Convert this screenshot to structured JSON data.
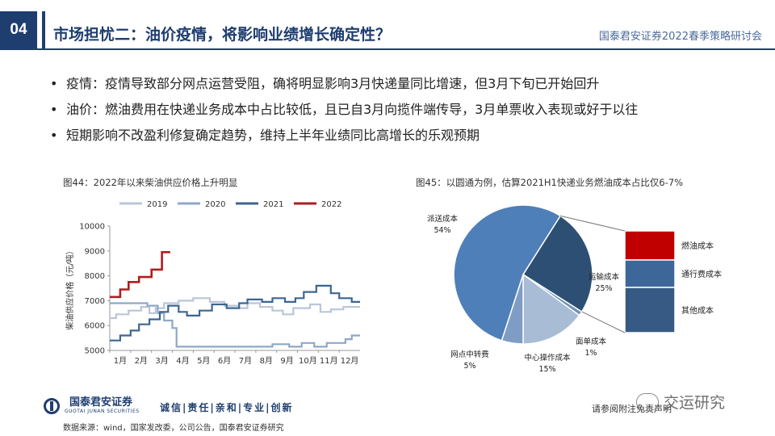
{
  "header": {
    "section": "04",
    "title": "市场担忧二：油价疫情，将影响业绩增长确定性？",
    "conference": "国泰君安证券2022春季策略研讨会"
  },
  "bullets": [
    "疫情：疫情导致部分网点运营受阻，确将明显影响3月快递量同比增速，但3月下旬已开始回升",
    "油价：燃油费用在快递业务成本中占比较低，且已自3月向揽件端传导，3月单票收入表现或好于以往",
    "短期影响不改盈利修复确定趋势，维持上半年业绩同比高增长的乐观预期"
  ],
  "chart_data": [
    {
      "type": "line",
      "title": "图44：2022年以来柴油供应价格上升明显",
      "ylabel": "柴油供应价格（元/吨）",
      "xlabel": "",
      "ylim": [
        5000,
        10000
      ],
      "yticks": [
        5000,
        6000,
        7000,
        8000,
        9000,
        10000
      ],
      "x_domain": [
        0,
        12
      ],
      "xticks": [
        "1月",
        "2月",
        "3月",
        "4月",
        "5月",
        "6月",
        "7月",
        "8月",
        "9月",
        "10月",
        "11月",
        "12月"
      ],
      "grid": false,
      "legend": "top",
      "series": [
        {
          "name": "2019",
          "color": "#b8c6d9",
          "points": [
            [
              0,
              6300
            ],
            [
              0.3,
              6300
            ],
            [
              0.3,
              6450
            ],
            [
              0.9,
              6450
            ],
            [
              0.9,
              6600
            ],
            [
              1.5,
              6600
            ],
            [
              1.5,
              6750
            ],
            [
              1.9,
              6750
            ],
            [
              1.9,
              6500
            ],
            [
              2.2,
              6500
            ],
            [
              2.2,
              6700
            ],
            [
              2.6,
              6700
            ],
            [
              2.6,
              6900
            ],
            [
              3.3,
              6900
            ],
            [
              3.3,
              7000
            ],
            [
              4.0,
              7000
            ],
            [
              4.0,
              7100
            ],
            [
              4.8,
              7100
            ],
            [
              4.8,
              6950
            ],
            [
              5.5,
              6950
            ],
            [
              5.5,
              6800
            ],
            [
              6.2,
              6800
            ],
            [
              6.2,
              6700
            ],
            [
              6.6,
              6700
            ],
            [
              6.6,
              6900
            ],
            [
              7.2,
              6900
            ],
            [
              7.2,
              6750
            ],
            [
              7.8,
              6750
            ],
            [
              7.8,
              6600
            ],
            [
              8.3,
              6600
            ],
            [
              8.3,
              6450
            ],
            [
              8.8,
              6450
            ],
            [
              8.8,
              6700
            ],
            [
              9.6,
              6700
            ],
            [
              9.6,
              6850
            ],
            [
              10.1,
              6850
            ],
            [
              10.1,
              6550
            ],
            [
              10.6,
              6550
            ],
            [
              10.6,
              6650
            ],
            [
              11.2,
              6650
            ],
            [
              11.2,
              6750
            ],
            [
              12,
              6750
            ]
          ]
        },
        {
          "name": "2020",
          "color": "#8ea8c8",
          "points": [
            [
              0,
              6900
            ],
            [
              1.8,
              6900
            ],
            [
              1.8,
              6800
            ],
            [
              2.3,
              6800
            ],
            [
              2.3,
              6500
            ],
            [
              2.6,
              6500
            ],
            [
              2.6,
              6200
            ],
            [
              3.0,
              6200
            ],
            [
              3.0,
              5900
            ],
            [
              3.2,
              5900
            ],
            [
              3.2,
              5150
            ],
            [
              7.8,
              5150
            ],
            [
              7.8,
              5250
            ],
            [
              8.6,
              5250
            ],
            [
              8.6,
              5150
            ],
            [
              9.2,
              5150
            ],
            [
              9.2,
              5300
            ],
            [
              9.8,
              5300
            ],
            [
              9.8,
              5150
            ],
            [
              10.4,
              5150
            ],
            [
              10.4,
              5300
            ],
            [
              11.3,
              5300
            ],
            [
              11.3,
              5450
            ],
            [
              11.6,
              5450
            ],
            [
              11.6,
              5600
            ],
            [
              12,
              5600
            ]
          ]
        },
        {
          "name": "2021",
          "color": "#3d6690",
          "points": [
            [
              0,
              5400
            ],
            [
              0.5,
              5400
            ],
            [
              0.5,
              5600
            ],
            [
              1.0,
              5600
            ],
            [
              1.0,
              5800
            ],
            [
              1.4,
              5800
            ],
            [
              1.4,
              6050
            ],
            [
              1.9,
              6050
            ],
            [
              1.9,
              6250
            ],
            [
              2.4,
              6250
            ],
            [
              2.4,
              6550
            ],
            [
              2.8,
              6550
            ],
            [
              2.8,
              6800
            ],
            [
              3.3,
              6800
            ],
            [
              3.3,
              6550
            ],
            [
              3.7,
              6550
            ],
            [
              3.7,
              6400
            ],
            [
              4.3,
              6400
            ],
            [
              4.3,
              6600
            ],
            [
              4.9,
              6600
            ],
            [
              4.9,
              6850
            ],
            [
              5.6,
              6850
            ],
            [
              5.6,
              6700
            ],
            [
              6.2,
              6700
            ],
            [
              6.2,
              6900
            ],
            [
              6.6,
              6900
            ],
            [
              6.6,
              7050
            ],
            [
              7.3,
              7050
            ],
            [
              7.3,
              6950
            ],
            [
              7.8,
              6950
            ],
            [
              7.8,
              7100
            ],
            [
              8.4,
              7100
            ],
            [
              8.4,
              6950
            ],
            [
              8.9,
              6950
            ],
            [
              8.9,
              7100
            ],
            [
              9.3,
              7100
            ],
            [
              9.3,
              7350
            ],
            [
              9.9,
              7350
            ],
            [
              9.9,
              7600
            ],
            [
              10.6,
              7600
            ],
            [
              10.6,
              7300
            ],
            [
              11.0,
              7300
            ],
            [
              11.0,
              7100
            ],
            [
              11.6,
              7100
            ],
            [
              11.6,
              6950
            ],
            [
              12,
              6950
            ]
          ]
        },
        {
          "name": "2022",
          "color": "#b01c20",
          "points": [
            [
              0,
              7150
            ],
            [
              0.5,
              7150
            ],
            [
              0.5,
              7450
            ],
            [
              0.9,
              7450
            ],
            [
              0.9,
              7750
            ],
            [
              1.4,
              7750
            ],
            [
              1.4,
              7950
            ],
            [
              2.0,
              7950
            ],
            [
              2.0,
              8250
            ],
            [
              2.5,
              8250
            ],
            [
              2.5,
              8950
            ],
            [
              2.9,
              8950
            ]
          ]
        }
      ]
    },
    {
      "type": "pie",
      "title": "图45：以圆通为例，估算2021H1快递业务燃油成本占比仅6-7%",
      "slices": [
        {
          "label": "运输成本",
          "value": 25,
          "display": "25%",
          "color": "#2d4f73"
        },
        {
          "label": "面单成本",
          "value": 1,
          "display": "1%",
          "color": "#6f8fb5"
        },
        {
          "label": "中心操作成本",
          "value": 15,
          "display": "15%",
          "color": "#a8bcd6"
        },
        {
          "label": "网点中转费",
          "value": 5,
          "display": "5%",
          "color": "#7f9dc4"
        },
        {
          "label": "派送成本",
          "value": 54,
          "display": "54%",
          "color": "#4f7fb8"
        }
      ],
      "breakdown_segments": [
        {
          "label": "燃油成本",
          "color": "#c00000"
        },
        {
          "label": "通行费成本",
          "color": "#3d6799"
        },
        {
          "label": "其他成本",
          "color": "#375a85"
        }
      ]
    }
  ],
  "footer": {
    "company": "国泰君安证券",
    "company_en": "GUOTAI JUNAN SECURITIES",
    "slogan": "诚信|责任|亲和|专业|创新",
    "source": "数据来源：wind，国家发改委，公司公告，国泰君安证券研究",
    "disclaimer": "请参阅附注免责声明",
    "watermark": "交运研究"
  }
}
